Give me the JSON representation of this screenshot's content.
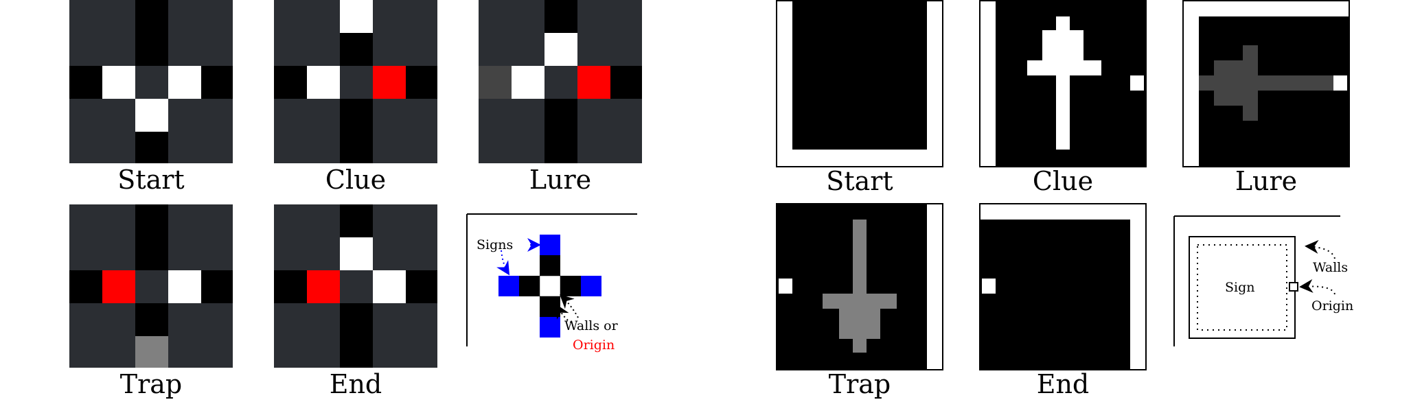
{
  "colors": {
    "dark_gray": "#2b2e33",
    "black": "#000000",
    "white": "#ffffff",
    "red": "#ff0000",
    "blue": "#0000ff",
    "mid_gray": "#808080",
    "lure_gray": "#444444"
  },
  "left_panel": {
    "labels": {
      "start": "Start",
      "clue": "Clue",
      "lure": "Lure",
      "trap": "Trap",
      "end": "End"
    },
    "legend": {
      "signs": "Signs",
      "walls_or": "Walls or",
      "origin": "Origin"
    }
  },
  "right_panel": {
    "labels": {
      "start": "Start",
      "clue": "Clue",
      "lure": "Lure",
      "trap": "Trap",
      "end": "End"
    },
    "legend": {
      "sign": "Sign",
      "walls": "Walls",
      "origin": "Origin"
    }
  }
}
